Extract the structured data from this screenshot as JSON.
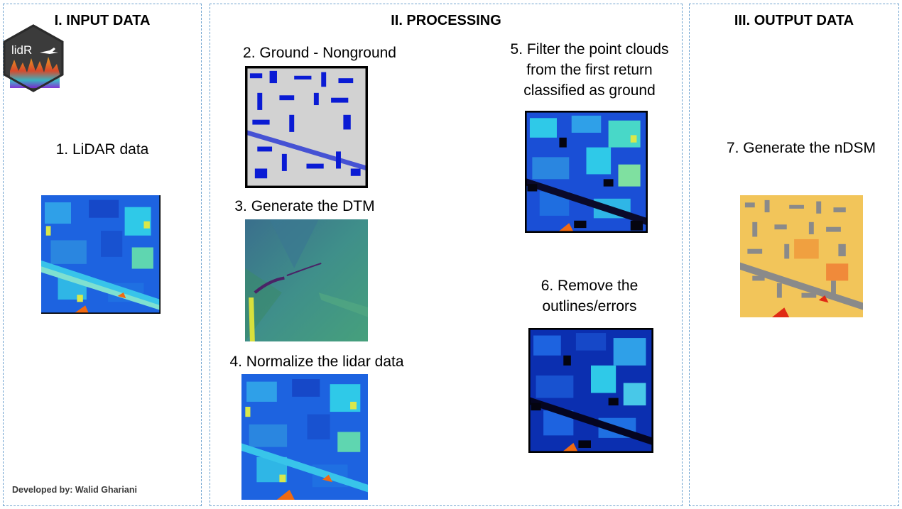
{
  "panels": {
    "input": {
      "title": "I.   INPUT DATA"
    },
    "processing": {
      "title": "II.   PROCESSING"
    },
    "output": {
      "title": "III.   OUTPUT DATA"
    }
  },
  "logo": {
    "text": "lidR"
  },
  "steps": {
    "s1": "1. LiDAR data",
    "s2": "2. Ground - Nonground",
    "s3": "3. Generate the DTM",
    "s4": "4. Normalize the lidar data",
    "s5": [
      "5. Filter the point clouds",
      "from the first return",
      "classified as ground"
    ],
    "s6": [
      "6. Remove the",
      "outlines/errors"
    ],
    "s7": "7. Generate the nDSM"
  },
  "credit": "Developed by: Walid Ghariani",
  "colors": {
    "border": "#6fa3cf",
    "map_blue": "#1d63e0",
    "map_dark_blue": "#0b2fb0",
    "map_cyan": "#2fc9e8",
    "map_yellow": "#d9e84a",
    "map_orange": "#f06a14",
    "ground_blue": "#0a1bd4",
    "ground_gray": "#d2d2d2",
    "dtm_teal": "#3f8f8a",
    "dtm_purple": "#4a2366",
    "ndsm_yellow": "#f2c55a",
    "ndsm_gray": "#8a8a8a"
  }
}
